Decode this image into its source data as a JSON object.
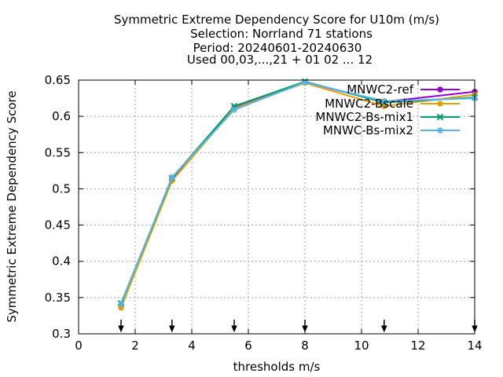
{
  "chart_data": {
    "type": "line",
    "title_lines": [
      "Symmetric Extreme Dependency Score  for U10m (m/s)",
      "Selection: Norrland     71 stations",
      "Period: 20240601-20240630",
      "Used 00,03,...,21 + 01 02 ... 12"
    ],
    "xlabel": "thresholds m/s",
    "ylabel": "Symmetric Extreme Dependency Score",
    "xlim": [
      0,
      14
    ],
    "ylim": [
      0.3,
      0.65
    ],
    "xticks": [
      0,
      2,
      4,
      6,
      8,
      10,
      12,
      14
    ],
    "yticks": [
      0.3,
      0.35,
      0.4,
      0.45,
      0.5,
      0.55,
      0.6,
      0.65
    ],
    "ytick_labels": [
      "0.3",
      "0.35",
      "0.4",
      "0.45",
      "0.5",
      "0.55",
      "0.6",
      "0.65"
    ],
    "grid": true,
    "legend_position": "top-right",
    "x": [
      1.5,
      3.3,
      5.5,
      8,
      10.8,
      14
    ],
    "arrow_markers_x": [
      1.5,
      3.3,
      5.5,
      8,
      10.8,
      14
    ],
    "series": [
      {
        "name": "MNWC2-ref",
        "color": "#9400d3",
        "marker": "circle",
        "values": [
          0.339,
          0.513,
          0.612,
          0.647,
          0.62,
          0.634
        ]
      },
      {
        "name": "MNWC2-Bscale",
        "color": "#e69f00",
        "marker": "circle",
        "values": [
          0.336,
          0.511,
          0.611,
          0.646,
          0.614,
          0.63
        ]
      },
      {
        "name": "MNWC2-Bs-mix1",
        "color": "#009e73",
        "marker": "cross",
        "values": [
          0.342,
          0.515,
          0.614,
          0.648,
          0.619,
          0.626
        ]
      },
      {
        "name": "MNWC-Bs-mix2",
        "color": "#56b4e9",
        "marker": "star",
        "values": [
          0.341,
          0.516,
          0.609,
          0.647,
          0.621,
          0.625
        ]
      }
    ]
  }
}
